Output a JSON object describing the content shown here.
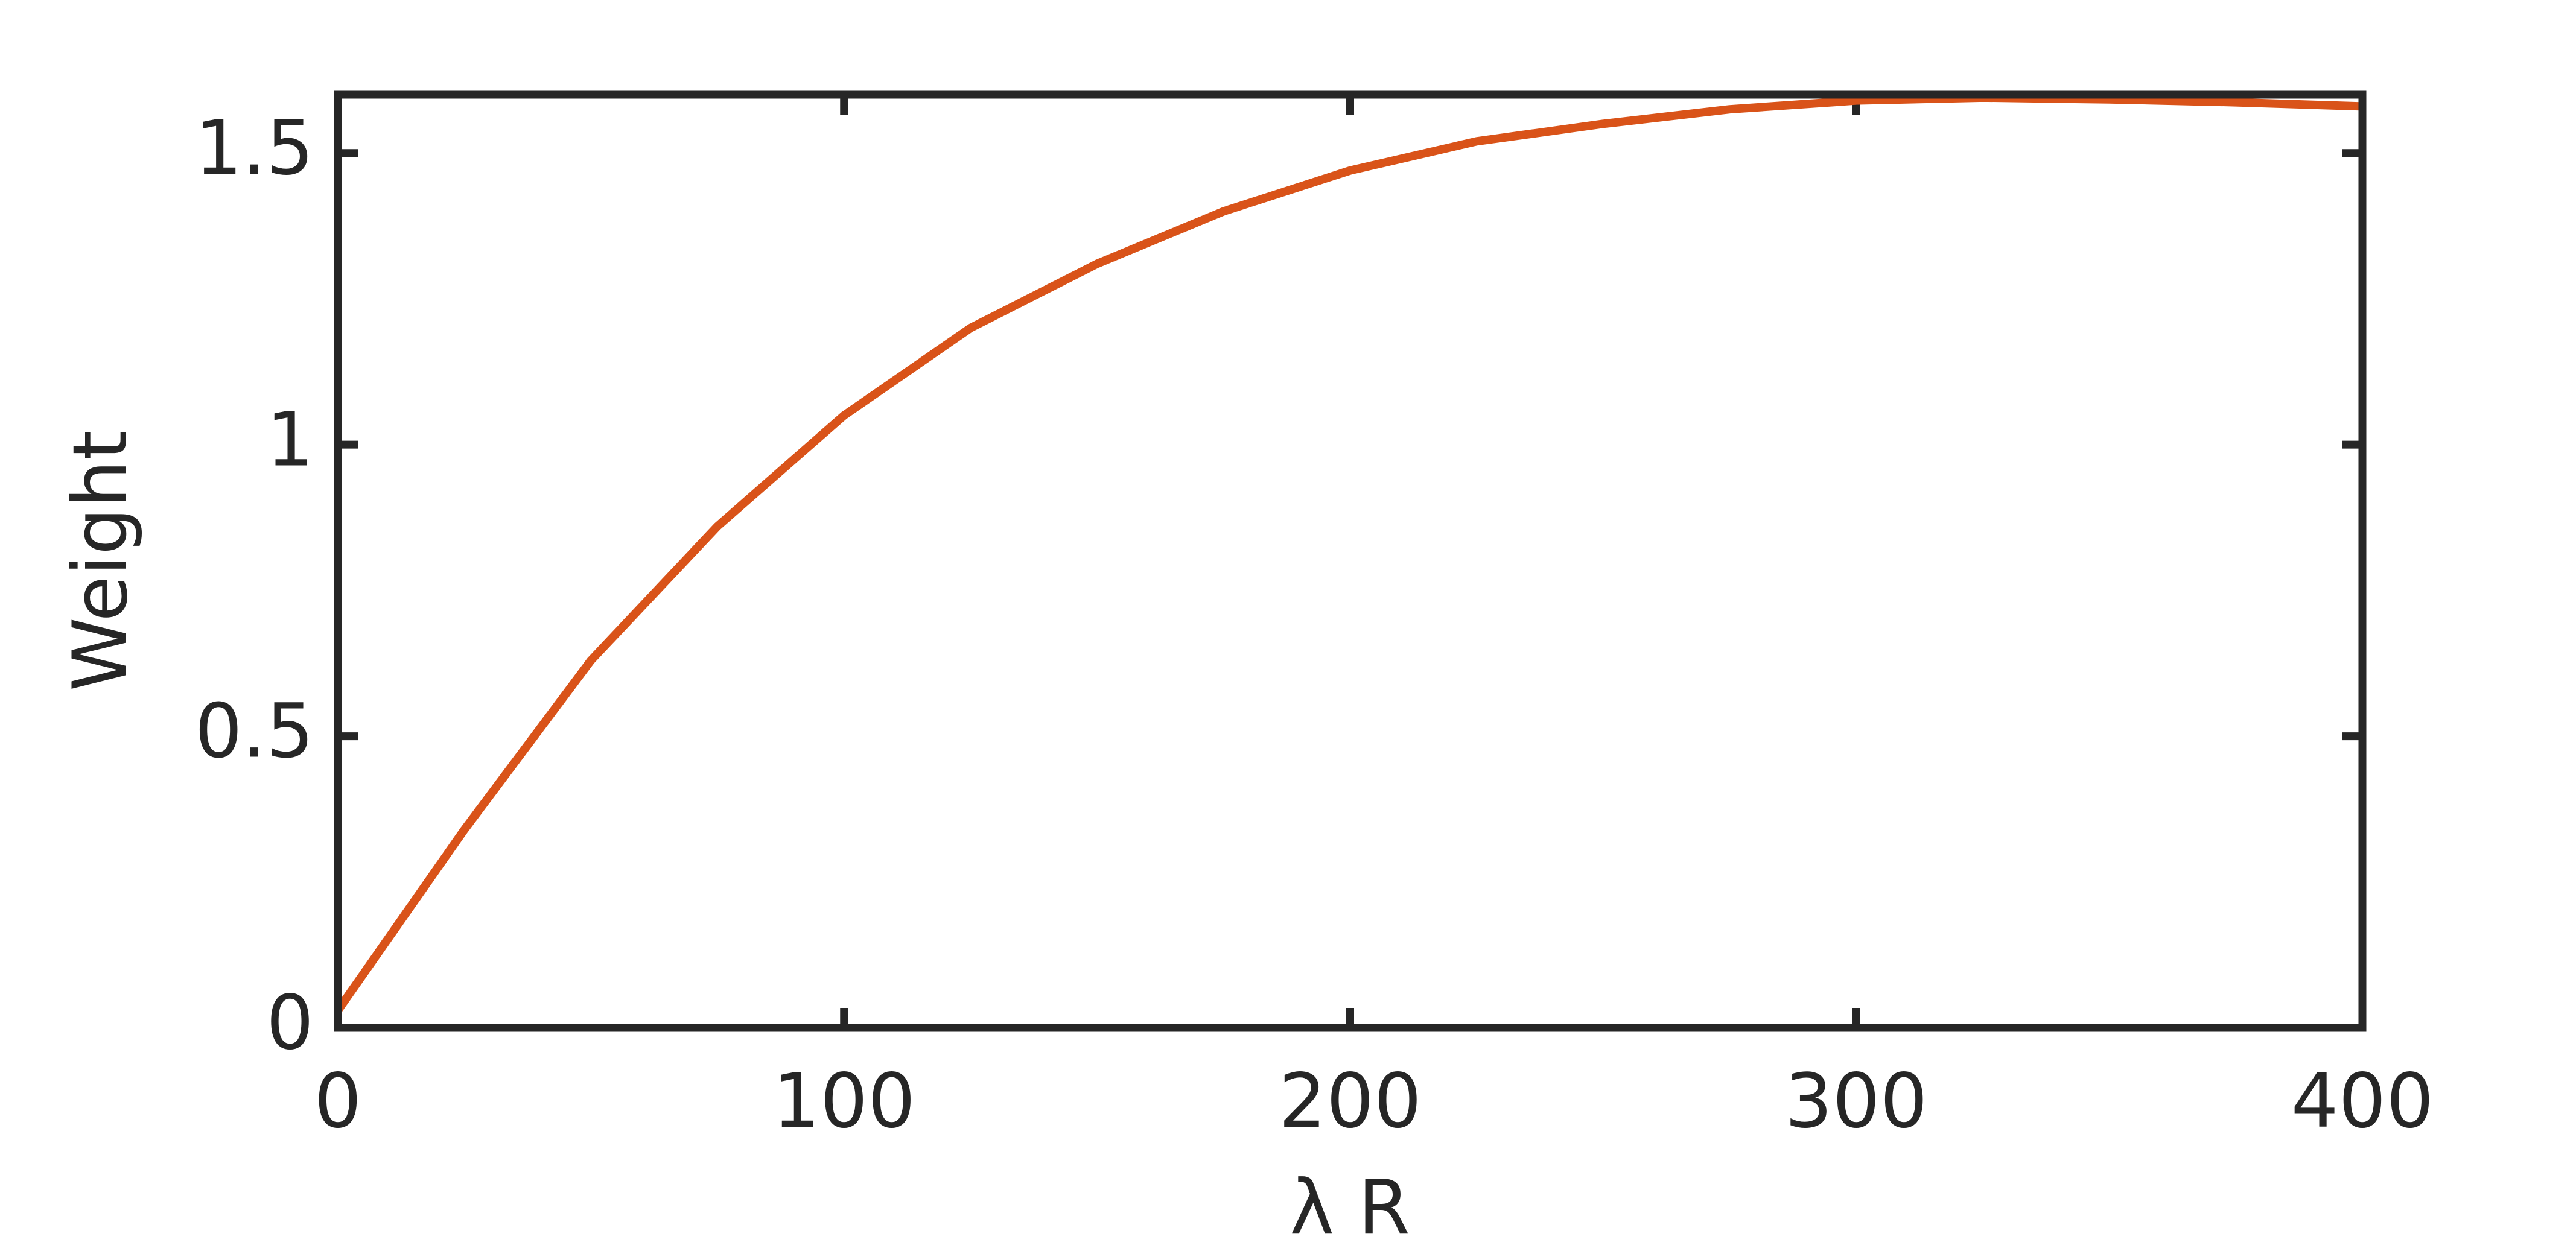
{
  "chart_data": {
    "type": "line",
    "x_label": "λ R",
    "y_label": "Weight",
    "x": [
      0,
      25,
      50,
      75,
      100,
      125,
      150,
      175,
      200,
      225,
      250,
      275,
      300,
      325,
      350,
      375,
      400
    ],
    "series": [
      {
        "color": "#d95319",
        "values": [
          0.03,
          0.34,
          0.63,
          0.86,
          1.05,
          1.2,
          1.31,
          1.4,
          1.47,
          1.52,
          1.55,
          1.575,
          1.59,
          1.595,
          1.592,
          1.587,
          1.58
        ]
      }
    ],
    "xlim": [
      0,
      400
    ],
    "xticks": [
      0,
      100,
      200,
      300,
      400
    ],
    "ylim": [
      0,
      1.6
    ],
    "yticks": [
      0,
      0.5,
      1,
      1.5
    ],
    "grid": false
  }
}
